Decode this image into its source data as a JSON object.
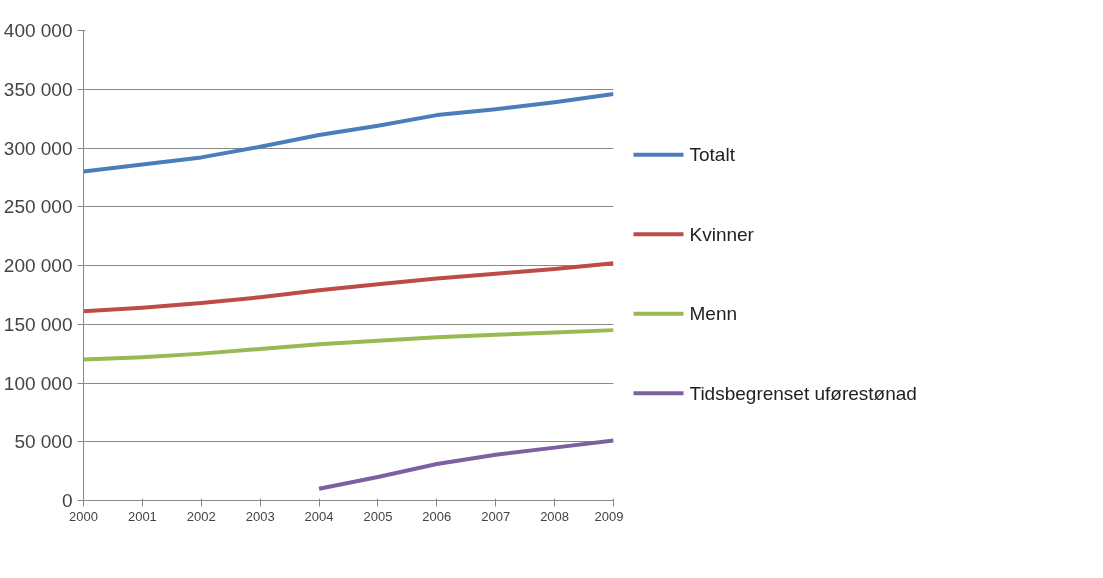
{
  "chart_data": {
    "type": "line",
    "x": [
      2000,
      2001,
      2002,
      2003,
      2004,
      2005,
      2006,
      2007,
      2008,
      2009
    ],
    "series": [
      {
        "name": "Totalt",
        "color": "#4a7ebb",
        "values": [
          280000,
          286000,
          292000,
          301000,
          311000,
          319000,
          328000,
          333000,
          339000,
          346000
        ]
      },
      {
        "name": "Kvinner",
        "color": "#be4b48",
        "values": [
          161000,
          164000,
          168000,
          173000,
          179000,
          184000,
          189000,
          193000,
          197000,
          202000
        ]
      },
      {
        "name": "Menn",
        "color": "#98b954",
        "values": [
          120000,
          122000,
          125000,
          129000,
          133000,
          136000,
          139000,
          141000,
          143000,
          145000
        ]
      },
      {
        "name": "Tidsbegrenset uførestønad",
        "color": "#7d60a0",
        "values": [
          null,
          null,
          null,
          null,
          10000,
          20000,
          31000,
          39000,
          45000,
          51000
        ]
      }
    ],
    "xlim": [
      2000,
      2009
    ],
    "xticks": [
      2000,
      2001,
      2002,
      2003,
      2004,
      2005,
      2006,
      2007,
      2008,
      2009
    ],
    "ylim": [
      0,
      400000
    ],
    "yticks": [
      {
        "value": 0,
        "label": "0"
      },
      {
        "value": 50000,
        "label": "50 000"
      },
      {
        "value": 100000,
        "label": "100 000"
      },
      {
        "value": 150000,
        "label": "150 000"
      },
      {
        "value": 200000,
        "label": "200 000"
      },
      {
        "value": 250000,
        "label": "250 000"
      },
      {
        "value": 300000,
        "label": "300 000"
      },
      {
        "value": 350000,
        "label": "350 000"
      },
      {
        "value": 400000,
        "label": "400 000"
      }
    ],
    "grid": "y",
    "legend": "right",
    "marker": "none",
    "line_style": "solid"
  }
}
